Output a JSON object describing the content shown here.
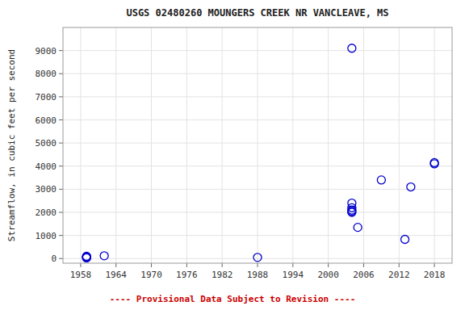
{
  "chart_data": {
    "type": "scatter",
    "title": "USGS 02480260 MOUNGERS CREEK NR VANCLEAVE, MS",
    "ylabel": "Streamflow, in cubic feet per second",
    "x": [
      1959,
      1959,
      1959,
      1959,
      1959,
      1962,
      1988,
      2004,
      2004,
      2004,
      2004,
      2004,
      2004,
      2005,
      2009,
      2013,
      2014,
      2018,
      2018
    ],
    "values": [
      30,
      50,
      60,
      80,
      100,
      120,
      50,
      9100,
      2400,
      2200,
      2100,
      2050,
      2000,
      1350,
      3400,
      830,
      3100,
      4100,
      4150
    ],
    "xlim": [
      1955,
      2021
    ],
    "ylim": [
      -200,
      10000
    ],
    "xticks": [
      1958,
      1964,
      1970,
      1976,
      1982,
      1988,
      1994,
      2000,
      2006,
      2012,
      2018
    ],
    "yticks": [
      0,
      1000,
      2000,
      3000,
      4000,
      5000,
      6000,
      7000,
      8000,
      9000
    ],
    "color": "#0000cc",
    "marker": "open-circle",
    "grid": true,
    "annotations": [
      {
        "text": "---- Provisional Data Subject to Revision ----",
        "color": "#cc0000"
      }
    ]
  }
}
